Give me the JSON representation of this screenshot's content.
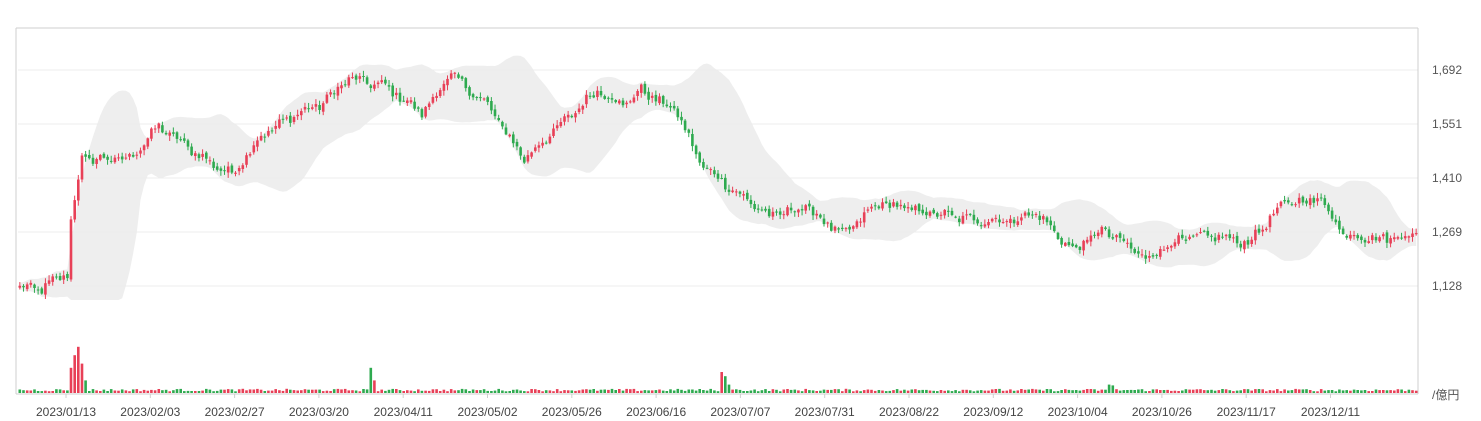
{
  "chart_data": {
    "type": "candlestick",
    "x_axis": {
      "tick_labels": [
        "2023/01/13",
        "2023/02/03",
        "2023/02/27",
        "2023/03/20",
        "2023/04/11",
        "2023/05/02",
        "2023/05/26",
        "2023/06/16",
        "2023/07/07",
        "2023/07/31",
        "2023/08/22",
        "2023/09/12",
        "2023/10/04",
        "2023/10/26",
        "2023/11/17",
        "2023/12/11"
      ]
    },
    "y_axis": {
      "tick_values": [
        1128,
        1269,
        1410,
        1551,
        1692
      ],
      "tick_labels": [
        "1,128",
        "1,269",
        "1,410",
        "1,551",
        "1,692"
      ],
      "range": [
        1085,
        1790
      ]
    },
    "volume_unit_label": "/億円",
    "price_anchors": [
      {
        "i": 0,
        "p": 1125
      },
      {
        "i": 6,
        "p": 1120
      },
      {
        "i": 9,
        "p": 1140
      },
      {
        "i": 13,
        "p": 1160
      },
      {
        "i": 14,
        "p": 1300
      },
      {
        "i": 17,
        "p": 1460
      },
      {
        "i": 30,
        "p": 1460
      },
      {
        "i": 38,
        "p": 1545
      },
      {
        "i": 52,
        "p": 1450
      },
      {
        "i": 58,
        "p": 1420
      },
      {
        "i": 66,
        "p": 1520
      },
      {
        "i": 76,
        "p": 1580
      },
      {
        "i": 82,
        "p": 1600
      },
      {
        "i": 90,
        "p": 1670
      },
      {
        "i": 100,
        "p": 1650
      },
      {
        "i": 110,
        "p": 1580
      },
      {
        "i": 118,
        "p": 1680
      },
      {
        "i": 128,
        "p": 1600
      },
      {
        "i": 138,
        "p": 1460
      },
      {
        "i": 148,
        "p": 1550
      },
      {
        "i": 158,
        "p": 1640
      },
      {
        "i": 165,
        "p": 1600
      },
      {
        "i": 170,
        "p": 1640
      },
      {
        "i": 180,
        "p": 1580
      },
      {
        "i": 186,
        "p": 1450
      },
      {
        "i": 195,
        "p": 1380
      },
      {
        "i": 205,
        "p": 1310
      },
      {
        "i": 215,
        "p": 1335
      },
      {
        "i": 225,
        "p": 1260
      },
      {
        "i": 235,
        "p": 1345
      },
      {
        "i": 248,
        "p": 1320
      },
      {
        "i": 262,
        "p": 1300
      },
      {
        "i": 272,
        "p": 1300
      },
      {
        "i": 278,
        "p": 1320
      },
      {
        "i": 288,
        "p": 1220
      },
      {
        "i": 296,
        "p": 1275
      },
      {
        "i": 302,
        "p": 1240
      },
      {
        "i": 308,
        "p": 1200
      },
      {
        "i": 316,
        "p": 1245
      },
      {
        "i": 326,
        "p": 1260
      },
      {
        "i": 336,
        "p": 1240
      },
      {
        "i": 346,
        "p": 1345
      },
      {
        "i": 356,
        "p": 1355
      },
      {
        "i": 362,
        "p": 1265
      },
      {
        "i": 372,
        "p": 1250
      },
      {
        "i": 382,
        "p": 1265
      }
    ],
    "volume_spikes": [
      {
        "i": 14,
        "v": 6
      },
      {
        "i": 15,
        "v": 9
      },
      {
        "i": 16,
        "v": 11
      },
      {
        "i": 17,
        "v": 7
      },
      {
        "i": 18,
        "v": 3
      },
      {
        "i": 96,
        "v": 6
      },
      {
        "i": 97,
        "v": 3
      },
      {
        "i": 192,
        "v": 5
      },
      {
        "i": 193,
        "v": 4
      },
      {
        "i": 194,
        "v": 2
      },
      {
        "i": 298,
        "v": 2
      },
      {
        "i": 299,
        "v": 1.8
      }
    ],
    "candle_count": 383,
    "colors": {
      "up": "#e84057",
      "down": "#2eaa4f",
      "band": "#e8e8e8",
      "grid": "#ececec",
      "axis": "#cfcfcf"
    }
  }
}
